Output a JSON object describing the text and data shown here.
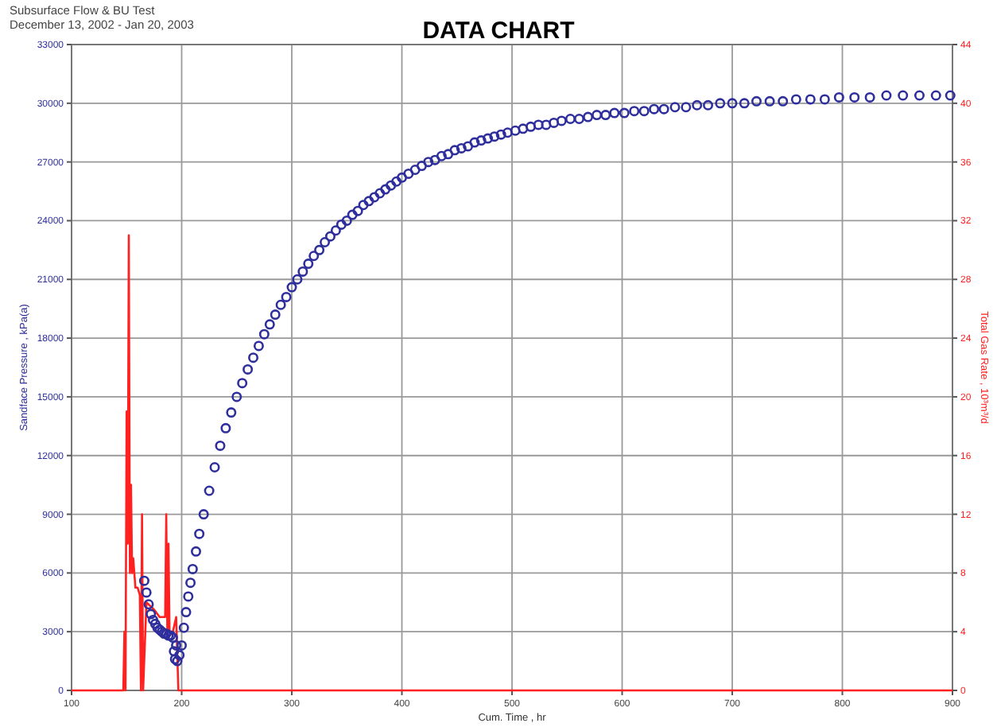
{
  "chart_data": {
    "type": "scatter",
    "title": "DATA CHART",
    "subtitle": "Subsurface Flow & BU Test",
    "annotations": [
      "December 13, 2002 - Jan 20, 2003"
    ],
    "xlabel": "Cum. Time , hr",
    "ylabel": "Sandface Pressure , kPa(a)",
    "y2label": "Total Gas Rate , 10³m³/d",
    "xlim": [
      100,
      900
    ],
    "xticks": [
      100,
      200,
      300,
      400,
      500,
      600,
      700,
      800,
      900
    ],
    "ylim": [
      0,
      33000
    ],
    "yticks": [
      0,
      3000,
      6000,
      9000,
      12000,
      15000,
      18000,
      21000,
      24000,
      27000,
      30000,
      33000
    ],
    "y2lim": [
      0,
      44
    ],
    "y2ticks": [
      0,
      4,
      8,
      12,
      16,
      20,
      24,
      28,
      32,
      36,
      40,
      44
    ],
    "grid": true,
    "series": [
      {
        "marker": "circle",
        "color": "#2e2e9c",
        "x": [
          166,
          168,
          170,
          172,
          174,
          176,
          178,
          180,
          182,
          184,
          186,
          188,
          190,
          192,
          193,
          194,
          195,
          196,
          198,
          200,
          202,
          204,
          206,
          208,
          210,
          213,
          216,
          220,
          225,
          230,
          235,
          240,
          245,
          250,
          255,
          260,
          265,
          270,
          275,
          280,
          285,
          290,
          295,
          300,
          305,
          310,
          315,
          320,
          325,
          330,
          335,
          340,
          345,
          350,
          355,
          360,
          365,
          370,
          375,
          380,
          385,
          390,
          395,
          400,
          406,
          412,
          418,
          424,
          430,
          436,
          442,
          448,
          454,
          460,
          466,
          472,
          478,
          484,
          490,
          496,
          503,
          510,
          517,
          524,
          531,
          538,
          545,
          553,
          561,
          569,
          577,
          585,
          593,
          602,
          611,
          620,
          629,
          638,
          648,
          658,
          668,
          678,
          689,
          700,
          711,
          722,
          734,
          746,
          758,
          771,
          784,
          797,
          811,
          825,
          840,
          855,
          870,
          885,
          898
        ],
        "values": [
          5600,
          5000,
          4400,
          3900,
          3600,
          3400,
          3200,
          3100,
          3000,
          2900,
          2900,
          2800,
          2800,
          2700,
          2000,
          1600,
          2300,
          1500,
          1800,
          2300,
          3200,
          4000,
          4800,
          5500,
          6200,
          7100,
          8000,
          9000,
          10200,
          11400,
          12500,
          13400,
          14200,
          15000,
          15700,
          16400,
          17000,
          17600,
          18200,
          18700,
          19200,
          19700,
          20100,
          20600,
          21000,
          21400,
          21800,
          22200,
          22500,
          22900,
          23200,
          23500,
          23800,
          24000,
          24300,
          24500,
          24800,
          25000,
          25200,
          25400,
          25600,
          25800,
          26000,
          26200,
          26400,
          26600,
          26800,
          27000,
          27100,
          27300,
          27400,
          27600,
          27700,
          27800,
          28000,
          28100,
          28200,
          28300,
          28400,
          28500,
          28600,
          28700,
          28800,
          28900,
          28900,
          29000,
          29100,
          29200,
          29200,
          29300,
          29400,
          29400,
          29500,
          29500,
          29600,
          29600,
          29700,
          29700,
          29800,
          29800,
          29900,
          29900,
          30000,
          30000,
          30000,
          30100,
          30100,
          30100,
          30200,
          30200,
          30200,
          30300,
          30300,
          30300,
          30400,
          30400,
          30400,
          30400,
          30400
        ]
      },
      {
        "type": "line",
        "axis": "y2",
        "color": "#ff2020",
        "line_style": "solid",
        "marker": "none",
        "x": [
          100,
          147,
          148,
          149,
          150,
          151,
          152,
          153,
          154,
          155,
          156,
          157,
          158,
          160,
          162,
          163,
          164,
          165,
          168,
          175,
          180,
          185,
          186,
          187,
          188,
          189,
          190,
          192,
          195,
          197,
          900
        ],
        "values": [
          0,
          0,
          4,
          0,
          19,
          10,
          31,
          8,
          14,
          8,
          9,
          8,
          7,
          7,
          6.5,
          0,
          12,
          0,
          6,
          5.5,
          5,
          5,
          12,
          4,
          10,
          4,
          4,
          4,
          5,
          0,
          0
        ]
      }
    ]
  }
}
